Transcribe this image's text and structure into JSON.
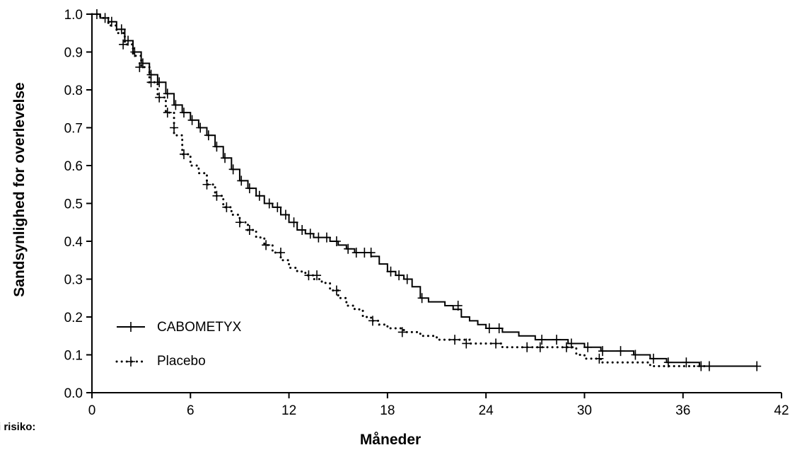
{
  "chart_data": {
    "type": "line",
    "subtype": "kaplan-meier step curve",
    "xlabel": "Måneder",
    "ylabel": "Sandsynlighed for overlevelse",
    "xlim": [
      0,
      42
    ],
    "ylim": [
      0.0,
      1.0
    ],
    "xticks": [
      0,
      6,
      12,
      18,
      24,
      30,
      36,
      42
    ],
    "xtick_labels": [
      "0",
      "6",
      "12",
      "18",
      "24",
      "30",
      "36",
      "42"
    ],
    "yticks": [
      0.0,
      0.1,
      0.2,
      0.3,
      0.4,
      0.5,
      0.6,
      0.7,
      0.8,
      0.9,
      1.0
    ],
    "ytick_labels": [
      "0.0",
      "0.1",
      "0.2",
      "0.3",
      "0.4",
      "0.5",
      "0.6",
      "0.7",
      "0.8",
      "0.9",
      "1.0"
    ],
    "grid": false,
    "legend_position": "bottom-left",
    "risk_table_label": "i risiko:",
    "series": [
      {
        "name": "CABOMETYX",
        "style": "solid",
        "color": "#000000",
        "x": [
          0,
          0.5,
          1.0,
          1.5,
          2.0,
          2.5,
          3.0,
          3.5,
          4.0,
          4.5,
          5.0,
          5.5,
          6.0,
          6.5,
          7.0,
          7.5,
          8.0,
          8.5,
          9.0,
          9.5,
          10.0,
          10.5,
          11.0,
          11.5,
          12.0,
          12.5,
          13.0,
          13.5,
          14.0,
          14.5,
          15.0,
          15.5,
          16.0,
          16.5,
          17.0,
          17.5,
          18.0,
          18.5,
          19.0,
          19.5,
          20.0,
          20.5,
          21.0,
          21.5,
          22.0,
          22.5,
          23.0,
          23.5,
          24.0,
          25.0,
          26.0,
          27.0,
          28.0,
          29.0,
          30.0,
          31.0,
          32.0,
          33.0,
          34.0,
          35.0,
          36.0,
          37.0,
          38.0,
          40.5
        ],
        "y": [
          1.0,
          0.99,
          0.98,
          0.96,
          0.93,
          0.9,
          0.87,
          0.84,
          0.82,
          0.79,
          0.76,
          0.74,
          0.72,
          0.7,
          0.68,
          0.65,
          0.62,
          0.59,
          0.56,
          0.54,
          0.52,
          0.5,
          0.49,
          0.47,
          0.45,
          0.43,
          0.42,
          0.41,
          0.41,
          0.4,
          0.39,
          0.38,
          0.37,
          0.37,
          0.36,
          0.34,
          0.32,
          0.31,
          0.3,
          0.28,
          0.25,
          0.24,
          0.24,
          0.23,
          0.22,
          0.2,
          0.19,
          0.18,
          0.17,
          0.16,
          0.15,
          0.14,
          0.14,
          0.13,
          0.12,
          0.11,
          0.11,
          0.1,
          0.09,
          0.08,
          0.08,
          0.07,
          0.07,
          0.07
        ],
        "censor_x": [
          0.3,
          0.8,
          1.2,
          1.8,
          2.2,
          2.6,
          3.1,
          3.6,
          4.1,
          4.6,
          5.1,
          5.6,
          6.1,
          6.6,
          7.1,
          7.6,
          8.1,
          8.6,
          9.1,
          9.6,
          10.2,
          10.8,
          11.3,
          11.8,
          12.3,
          12.8,
          13.3,
          13.8,
          14.3,
          14.9,
          15.6,
          16.1,
          16.6,
          17.0,
          18.2,
          18.7,
          19.2,
          20.1,
          22.3,
          24.2,
          24.8,
          27.4,
          28.3,
          29.2,
          30.2,
          31.1,
          32.2,
          33.1,
          34.2,
          35.1,
          36.2,
          37.1,
          37.6,
          40.5
        ],
        "censor_y": [
          1.0,
          0.99,
          0.98,
          0.96,
          0.93,
          0.9,
          0.87,
          0.84,
          0.82,
          0.79,
          0.76,
          0.74,
          0.72,
          0.7,
          0.68,
          0.65,
          0.62,
          0.59,
          0.56,
          0.54,
          0.52,
          0.5,
          0.49,
          0.47,
          0.45,
          0.43,
          0.42,
          0.41,
          0.41,
          0.4,
          0.38,
          0.37,
          0.37,
          0.37,
          0.32,
          0.31,
          0.3,
          0.25,
          0.23,
          0.17,
          0.17,
          0.14,
          0.14,
          0.13,
          0.12,
          0.11,
          0.11,
          0.1,
          0.09,
          0.08,
          0.08,
          0.07,
          0.07,
          0.07
        ]
      },
      {
        "name": "Placebo",
        "style": "dotted",
        "color": "#000000",
        "x": [
          0,
          0.5,
          1.0,
          1.5,
          2.0,
          2.5,
          3.0,
          3.5,
          4.0,
          4.5,
          5.0,
          5.5,
          6.0,
          6.5,
          7.0,
          7.5,
          8.0,
          8.5,
          9.0,
          9.5,
          10.0,
          10.5,
          11.0,
          11.5,
          12.0,
          12.5,
          13.0,
          13.5,
          14.0,
          14.5,
          15.0,
          15.5,
          16.0,
          16.5,
          17.0,
          17.5,
          18.0,
          19.0,
          20.0,
          21.0,
          22.0,
          23.0,
          24.0,
          25.0,
          26.0,
          28.0,
          29.0,
          29.5,
          30.0,
          31.0,
          32.0,
          34.0,
          35.0,
          36.0,
          37.0,
          37.5
        ],
        "y": [
          1.0,
          0.99,
          0.97,
          0.95,
          0.92,
          0.89,
          0.86,
          0.82,
          0.78,
          0.74,
          0.68,
          0.63,
          0.6,
          0.58,
          0.55,
          0.52,
          0.49,
          0.47,
          0.45,
          0.43,
          0.41,
          0.39,
          0.37,
          0.35,
          0.33,
          0.32,
          0.31,
          0.3,
          0.29,
          0.27,
          0.25,
          0.23,
          0.22,
          0.2,
          0.19,
          0.18,
          0.17,
          0.16,
          0.15,
          0.14,
          0.14,
          0.13,
          0.13,
          0.12,
          0.12,
          0.12,
          0.12,
          0.1,
          0.09,
          0.08,
          0.08,
          0.07,
          0.07,
          0.07,
          0.07,
          0.07
        ],
        "censor_x": [
          1.9,
          2.9,
          3.6,
          4.1,
          4.6,
          5.0,
          5.6,
          7.0,
          7.6,
          8.2,
          9.0,
          9.6,
          10.6,
          11.5,
          13.2,
          13.7,
          14.9,
          17.1,
          18.9,
          22.1,
          22.8,
          24.6,
          26.5,
          27.3,
          28.9,
          30.9
        ],
        "censor_y": [
          0.92,
          0.86,
          0.82,
          0.78,
          0.74,
          0.7,
          0.63,
          0.55,
          0.52,
          0.49,
          0.45,
          0.43,
          0.39,
          0.37,
          0.31,
          0.31,
          0.27,
          0.19,
          0.16,
          0.14,
          0.13,
          0.13,
          0.12,
          0.12,
          0.12,
          0.09
        ]
      }
    ]
  }
}
